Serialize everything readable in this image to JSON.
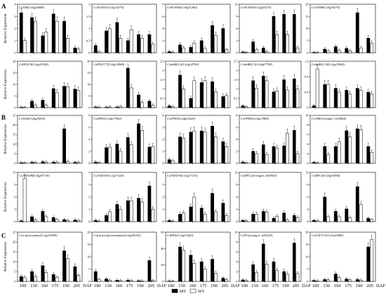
{
  "chart_data": {
    "type": "bar",
    "section_labels": [
      "A",
      "B",
      "C"
    ],
    "ylabel": "Relative Expression",
    "x_categories": [
      "100",
      "130",
      "160",
      "175",
      "190",
      "205"
    ],
    "x_unit": "DAF",
    "legend": [
      {
        "name": "MT",
        "color": "#000000"
      },
      {
        "name": "WT",
        "color": "#ffffff"
      }
    ],
    "panels": [
      {
        "title": "CsTDI(Cs5g26080)",
        "ylim": [
          0,
          4
        ],
        "yticks": [
          0,
          1,
          2,
          3,
          4
        ],
        "series": [
          {
            "name": "MT",
            "values": [
              3.3,
              2.9,
              1.4,
              3.2,
              2.6,
              0.4
            ]
          },
          {
            "name": "WT",
            "values": [
              1.0,
              2.6,
              1.7,
              2.6,
              1.2,
              0.3
            ]
          }
        ]
      },
      {
        "title": "CsNCED1(Cs5g14370)",
        "ylim": [
          0,
          2
        ],
        "yticks": [
          0,
          0.5,
          1,
          1.5,
          2
        ],
        "series": [
          {
            "name": "MT",
            "values": [
              0.3,
              0.9,
              1.25,
              0.5,
              0.75,
              0.75
            ]
          },
          {
            "name": "WT",
            "values": [
              0.05,
              1.0,
              0.6,
              0.95,
              0.6,
              0.35
            ]
          }
        ]
      },
      {
        "title": "CsNCED6(Cs9g11260)",
        "ylim": [
          0,
          8
        ],
        "yticks": [
          0,
          2,
          4,
          6,
          8
        ],
        "series": [
          {
            "name": "MT",
            "values": [
              0.2,
              1.3,
              0.9,
              2.0,
              4.5,
              4.0
            ]
          },
          {
            "name": "WT",
            "values": [
              0.1,
              0.8,
              1.6,
              0.7,
              2.9,
              0.5
            ]
          }
        ]
      },
      {
        "title": "CsNCED3(Cs2g02270)",
        "ylim": [
          0,
          12
        ],
        "yticks": [
          0,
          3,
          6,
          9,
          12
        ],
        "series": [
          {
            "name": "MT",
            "values": [
              0.2,
              2.7,
              1.2,
              9.0,
              9.5,
              9.5
            ]
          },
          {
            "name": "WT",
            "values": [
              0.1,
              0.8,
              0.3,
              4.5,
              4.5,
              1.2
            ]
          }
        ]
      },
      {
        "title": "CsCHYB(Cs9g19270)",
        "ylim": [
          0,
          20
        ],
        "yticks": [
          0,
          5,
          10,
          15,
          20
        ],
        "series": [
          {
            "name": "MT",
            "values": [
              0.2,
              1.5,
              2.5,
              1.8,
              16.5,
              6.0
            ]
          },
          {
            "name": "WT",
            "values": [
              0.1,
              0.8,
              1.0,
              0.8,
              2.0,
              4.0
            ]
          }
        ]
      },
      {
        "title": "CsPP2C9(Cs4g19140)",
        "ylim": [
          0,
          20
        ],
        "yticks": [
          0,
          5,
          10,
          15,
          20
        ],
        "series": [
          {
            "name": "MT",
            "values": [
              0.2,
              2.8,
              3.2,
              8.2,
              9.2,
              8.0
            ]
          },
          {
            "name": "WT",
            "values": [
              0.1,
              1.1,
              1.0,
              6.5,
              9.0,
              7.5
            ]
          }
        ]
      },
      {
        "title": "CsPP2C77(Cs4g14980)",
        "ylim": [
          0,
          20
        ],
        "yticks": [
          0,
          5,
          10,
          15,
          20
        ],
        "series": [
          {
            "name": "MT",
            "values": [
              0.3,
              0.2,
              0.3,
              17.0,
              5.5,
              2.8
            ]
          },
          {
            "name": "WT",
            "values": [
              0.2,
              0.3,
              0.5,
              8.5,
              2.2,
              1.0
            ]
          }
        ]
      },
      {
        "title": "CsSnRK2.2(Cs5g34750)",
        "ylim": [
          0,
          2.5
        ],
        "yticks": [
          0,
          0.5,
          1,
          1.5,
          2,
          2.5
        ],
        "series": [
          {
            "name": "MT",
            "values": [
              0.1,
              1.75,
              0.5,
              1.35,
              1.4,
              0.6
            ]
          },
          {
            "name": "WT",
            "values": [
              0.05,
              1.0,
              1.45,
              1.45,
              0.85,
              0.65
            ]
          }
        ]
      },
      {
        "title": "CsSnRK2.3(Cs5g07700)",
        "ylim": [
          0,
          2.5
        ],
        "yticks": [
          0,
          0.5,
          1,
          1.5,
          2,
          2.5
        ],
        "series": [
          {
            "name": "MT",
            "values": [
              0.1,
              1.45,
              1.7,
              0.85,
              1.5,
              1.55
            ]
          },
          {
            "name": "WT",
            "values": [
              0.05,
              1.05,
              1.45,
              0.9,
              0.95,
              1.0
            ]
          }
        ]
      },
      {
        "title": "CsSnRK2.10(Cs5g23060)",
        "ylim": [
          0,
          1.2
        ],
        "yticks": [
          0,
          0.4,
          0.8,
          1.2
        ],
        "series": [
          {
            "name": "MT",
            "values": [
              0.05,
              0.6,
              0.5,
              0.45,
              0.5,
              0.4
            ]
          },
          {
            "name": "WT",
            "values": [
              1.0,
              0.6,
              0.4,
              0.35,
              0.45,
              0.35
            ]
          }
        ]
      },
      {
        "title": "CsAOS(Cs5g28230)",
        "ylim": [
          0,
          25
        ],
        "yticks": [
          0,
          5,
          10,
          15,
          20,
          25
        ],
        "series": [
          {
            "name": "MT",
            "values": [
              0.3,
              0.5,
              0.8,
              0.6,
              18.0,
              0.5
            ]
          },
          {
            "name": "WT",
            "values": [
              0.2,
              0.4,
              0.6,
              0.5,
              1.0,
              0.4
            ]
          }
        ]
      },
      {
        "title": "CsOPR1(Cs5g17900)",
        "ylim": [
          0,
          8
        ],
        "yticks": [
          0,
          2,
          4,
          6,
          8
        ],
        "series": [
          {
            "name": "MT",
            "values": [
              0.2,
              2.6,
              3.2,
              4.3,
              6.6,
              2.7
            ]
          },
          {
            "name": "WT",
            "values": [
              0.1,
              2.7,
              2.0,
              3.1,
              5.5,
              2.8
            ]
          }
        ]
      },
      {
        "title": "CsOPR3(Cs4g15220)",
        "ylim": [
          0,
          4
        ],
        "yticks": [
          0,
          1,
          2,
          3,
          4
        ],
        "series": [
          {
            "name": "MT",
            "values": [
              0.3,
              2.2,
              2.6,
              2.7,
              3.1,
              1.8
            ]
          },
          {
            "name": "WT",
            "values": [
              0.2,
              2.1,
              2.7,
              2.6,
              2.2,
              1.4
            ]
          }
        ]
      },
      {
        "title": "CsOPR2(Cs5g17880)",
        "ylim": [
          0,
          8
        ],
        "yticks": [
          0,
          2,
          4,
          6,
          8
        ],
        "series": [
          {
            "name": "MT",
            "values": [
              0.2,
              2.0,
              3.1,
              2.8,
              2.9,
              5.5
            ]
          },
          {
            "name": "WT",
            "values": [
              0.1,
              1.6,
              1.5,
              2.5,
              5.0,
              1.6
            ]
          }
        ]
      },
      {
        "title": "CsJAR1(orange1.1t00464)",
        "ylim": [
          0,
          10
        ],
        "yticks": [
          0,
          2,
          4,
          6,
          8,
          10
        ],
        "series": [
          {
            "name": "MT",
            "values": [
              0.2,
              3.5,
              3.5,
              6.8,
              7.2,
              3.5
            ]
          },
          {
            "name": "WT",
            "values": [
              0.1,
              1.8,
              4.5,
              5.5,
              7.0,
              2.3
            ]
          }
        ]
      },
      {
        "title": "CsJAZ10B(Cs4g07130)",
        "ylim": [
          0,
          12
        ],
        "yticks": [
          0,
          3,
          6,
          9,
          12
        ],
        "series": [
          {
            "name": "MT",
            "values": [
              0.2,
              1.2,
              2.5,
              1.0,
              0.5,
              0.4
            ]
          },
          {
            "name": "WT",
            "values": [
              10.5,
              0.4,
              1.2,
              0.5,
              0.3,
              0.3
            ]
          }
        ]
      },
      {
        "title": "CsJAZ10A(Cs1g17220)",
        "ylim": [
          0,
          4
        ],
        "yticks": [
          0,
          1,
          2,
          3,
          4
        ],
        "series": [
          {
            "name": "MT",
            "values": [
              0.1,
              0.5,
              1.4,
              1.7,
              1.9,
              2.9
            ]
          },
          {
            "name": "WT",
            "values": [
              0.05,
              0.8,
              1.0,
              1.7,
              1.6,
              1.0
            ]
          }
        ]
      },
      {
        "title": "CsJAZ10A(Cs1g17210)",
        "ylim": [
          0,
          4
        ],
        "yticks": [
          0,
          1,
          2,
          3,
          4
        ],
        "series": [
          {
            "name": "MT",
            "values": [
              0.1,
              0.6,
              1.2,
              1.1,
              2.3,
              1.5
            ]
          },
          {
            "name": "WT",
            "values": [
              0.05,
              0.7,
              2.0,
              0.6,
              0.8,
              0.5
            ]
          }
        ]
      },
      {
        "title": "CsMYC2(orange1.1t00550)",
        "ylim": [
          0,
          12
        ],
        "yticks": [
          0,
          3,
          6,
          9,
          12
        ],
        "series": [
          {
            "name": "MT",
            "values": [
              0.3,
              1.8,
              2.5,
              0.8,
              2.1,
              1.5
            ]
          },
          {
            "name": "WT",
            "values": [
              0.2,
              1.8,
              2.3,
              1.3,
              0.4,
              1.0
            ]
          }
        ]
      },
      {
        "title": "CsMYC4(Cs5g01850)",
        "ylim": [
          0,
          12
        ],
        "yticks": [
          0,
          3,
          6,
          9,
          12
        ],
        "series": [
          {
            "name": "MT",
            "values": [
              0.3,
              6.0,
              2.5,
              3.1,
              8.5,
              0.8
            ]
          },
          {
            "name": "WT",
            "values": [
              0.2,
              1.2,
              1.2,
              1.0,
              4.2,
              0.5
            ]
          }
        ]
      },
      {
        "title": "Cvo-glucosidase(Cs2g10900)",
        "ylim": [
          0,
          25
        ],
        "yticks": [
          0,
          5,
          10,
          15,
          20,
          25
        ],
        "series": [
          {
            "name": "MT",
            "values": [
              2.5,
              5.0,
              8.0,
              3.5,
              15.5,
              7.5
            ]
          },
          {
            "name": "WT",
            "values": [
              2.0,
              2.5,
              4.5,
              2.0,
              11.5,
              3.0
            ]
          }
        ]
      },
      {
        "title": "Cvβ-fructofuranosidase(Cs5g09220)",
        "ylim": [
          0,
          20
        ],
        "yticks": [
          0,
          5,
          10,
          15,
          20
        ],
        "series": [
          {
            "name": "MT",
            "values": [
              4.0,
              1.0,
              0.5,
              0.5,
              0.3,
              8.5
            ]
          },
          {
            "name": "WT",
            "values": [
              0.8,
              0.5,
              0.3,
              0.3,
              0.2,
              0.3
            ]
          }
        ]
      },
      {
        "title": "CsPEX(Cs5g13420)",
        "ylim": [
          0,
          60
        ],
        "yticks": [
          0,
          20,
          40,
          60
        ],
        "series": [
          {
            "name": "MT",
            "values": [
              0.5,
              42.0,
              32.0,
              24.0,
              27.0,
              4.0
            ]
          },
          {
            "name": "WT",
            "values": [
              0.3,
              38.0,
              22.0,
              15.0,
              10.0,
              2.0
            ]
          }
        ]
      },
      {
        "title": "CsPG(orange1.1t02529)",
        "ylim": [
          0,
          10
        ],
        "yticks": [
          0,
          2,
          4,
          6,
          8,
          10
        ],
        "series": [
          {
            "name": "MT",
            "values": [
              0.3,
              3.4,
              7.6,
              4.0,
              2.0,
              7.8
            ]
          },
          {
            "name": "WT",
            "values": [
              0.2,
              1.8,
              3.5,
              2.2,
              1.5,
              1.6
            ]
          }
        ]
      },
      {
        "title": "CsGAUT11(Cs7g16080)",
        "ylim": [
          0,
          20
        ],
        "yticks": [
          0,
          5,
          10,
          15,
          20
        ],
        "series": [
          {
            "name": "MT",
            "values": [
              0.4,
              0.8,
              3.0,
              1.0,
              0.8,
              14.0
            ]
          },
          {
            "name": "WT",
            "values": [
              0.2,
              0.6,
              1.5,
              0.6,
              0.5,
              17.0
            ]
          }
        ]
      }
    ]
  }
}
